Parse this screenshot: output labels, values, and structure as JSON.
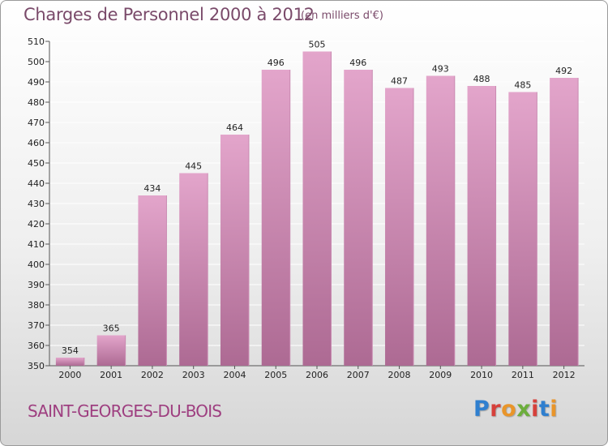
{
  "header": {
    "title": "Charges de Personnel 2000 à 2012",
    "subtitle": "(en milliers d'€)"
  },
  "footer": {
    "commune": "SAINT-GEORGES-DU-BOIS",
    "logo_text": "Proxiti"
  },
  "colors": {
    "bar_top": "#e3a5cb",
    "bar_bottom": "#ad6a93",
    "grid": "#ffffff",
    "text": "#7a4a6a"
  },
  "chart_data": {
    "type": "bar",
    "title": "Charges de Personnel 2000 à 2012",
    "subtitle": "(en milliers d'€)",
    "categories": [
      "2000",
      "2001",
      "2002",
      "2003",
      "2004",
      "2005",
      "2006",
      "2007",
      "2008",
      "2009",
      "2010",
      "2011",
      "2012"
    ],
    "values": [
      354,
      365,
      434,
      445,
      464,
      496,
      505,
      496,
      487,
      493,
      488,
      485,
      492
    ],
    "ylim": [
      350,
      510
    ],
    "ytick_step": 10,
    "grid": true,
    "legend": "none"
  }
}
